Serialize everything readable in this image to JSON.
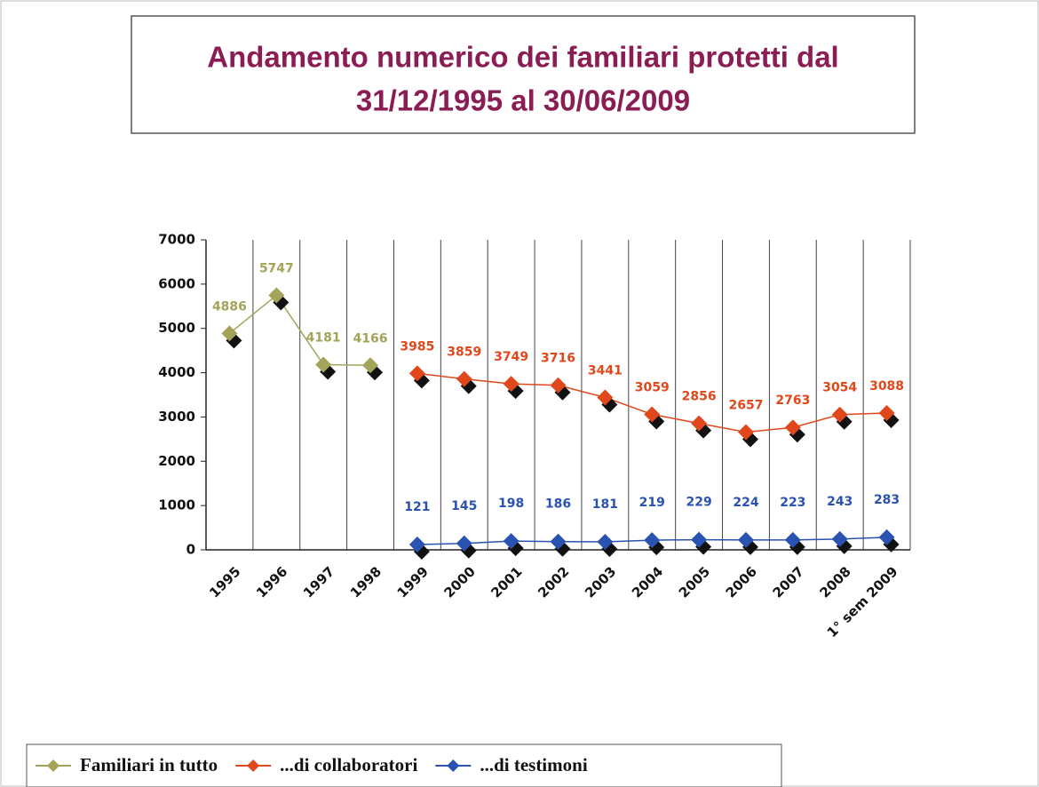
{
  "chart_data": {
    "type": "line",
    "title": [
      "Andamento numerico dei familiari protetti dal",
      "31/12/1995 al 30/06/2009"
    ],
    "categories": [
      "1995",
      "1996",
      "1997",
      "1998",
      "1999",
      "2000",
      "2001",
      "2002",
      "2003",
      "2004",
      "2005",
      "2006",
      "2007",
      "2008",
      "1° sem 2009"
    ],
    "series": [
      {
        "name": "Familiari in tutto",
        "color": "#a3a35a",
        "values": [
          4886,
          5747,
          4181,
          4166,
          null,
          null,
          null,
          null,
          null,
          null,
          null,
          null,
          null,
          null,
          null
        ]
      },
      {
        "name": "...di collaboratori",
        "color": "#e0481c",
        "values": [
          null,
          null,
          null,
          null,
          3985,
          3859,
          3749,
          3716,
          3441,
          3059,
          2856,
          2657,
          2763,
          3054,
          3088
        ]
      },
      {
        "name": "...di testimoni",
        "color": "#2a52b0",
        "values": [
          null,
          null,
          null,
          null,
          121,
          145,
          198,
          186,
          181,
          219,
          229,
          224,
          223,
          243,
          283
        ]
      }
    ],
    "ylim": [
      0,
      7000
    ],
    "yticks": [
      0,
      1000,
      2000,
      3000,
      4000,
      5000,
      6000,
      7000
    ]
  }
}
